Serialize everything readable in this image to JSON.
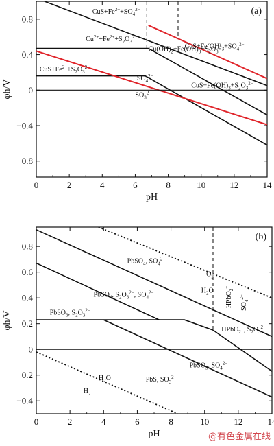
{
  "watermark": "@有色金属在线",
  "colors": {
    "boundary": "#111111",
    "water_line": "#e0252b",
    "dashed": "#222222",
    "watermark": "#d2464d"
  },
  "chart_data": [
    {
      "type": "line",
      "panel_label": "(a)",
      "xlabel": "pH",
      "ylabel": "φh/V",
      "xlim": [
        0,
        14
      ],
      "ylim": [
        -0.98,
        1.0
      ],
      "xticks": [
        0,
        2,
        4,
        6,
        8,
        10,
        12,
        14
      ],
      "yticks": [
        -0.8,
        -0.4,
        0,
        0.4,
        0.8
      ],
      "grid": false,
      "series": [
        {
          "style": "solid",
          "color": "black",
          "x": [
            0.5,
            14
          ],
          "y": [
            1.0,
            0.05
          ]
        },
        {
          "style": "solid",
          "color": "black",
          "x": [
            0,
            6.8,
            14
          ],
          "y": [
            0.47,
            0.47,
            -0.28
          ]
        },
        {
          "style": "solid",
          "color": "black",
          "x": [
            0,
            6.6,
            14
          ],
          "y": [
            0.16,
            0.16,
            -0.62
          ]
        },
        {
          "style": "solid",
          "color": "red",
          "x": [
            6.8,
            14
          ],
          "y": [
            0.73,
            0.13
          ]
        },
        {
          "style": "solid",
          "color": "red",
          "x": [
            0,
            14
          ],
          "y": [
            0.44,
            -0.39
          ]
        },
        {
          "style": "solid",
          "color": "black",
          "x": [
            0,
            14
          ],
          "y": [
            0,
            0
          ]
        },
        {
          "style": "dashed",
          "color": "black",
          "x": [
            6.7,
            6.7
          ],
          "y": [
            1.0,
            0.47
          ]
        },
        {
          "style": "dashed",
          "color": "black",
          "x": [
            8.6,
            8.6
          ],
          "y": [
            1.0,
            0.58
          ]
        }
      ],
      "region_labels": [
        {
          "x": 3.4,
          "y": 0.86,
          "parts": [
            [
              "t",
              "CuS+Fe"
            ],
            [
              "sup",
              "2+"
            ],
            [
              "t",
              "+SO"
            ],
            [
              "sub",
              "4"
            ],
            [
              "sup",
              "2−"
            ]
          ]
        },
        {
          "x": 3.0,
          "y": 0.55,
          "parts": [
            [
              "t",
              "Cu"
            ],
            [
              "sup",
              "2+"
            ],
            [
              "t",
              "+Fe"
            ],
            [
              "sup",
              "2+"
            ],
            [
              "t",
              "+S"
            ],
            [
              "sub",
              "2"
            ],
            [
              "t",
              "O"
            ],
            [
              "sub",
              "3"
            ],
            [
              "sup",
              "2−"
            ]
          ]
        },
        {
          "x": 0.2,
          "y": 0.21,
          "parts": [
            [
              "t",
              "CuS+Fe"
            ],
            [
              "sup",
              "2+"
            ],
            [
              "t",
              "+S"
            ],
            [
              "sub",
              "2"
            ],
            [
              "t",
              "O"
            ],
            [
              "sub",
              "3"
            ],
            [
              "sup",
              "2−"
            ]
          ]
        },
        {
          "x": 9.0,
          "y": 0.47,
          "parts": [
            [
              "t",
              "CuS+Fe(OH)"
            ],
            [
              "sub",
              "3"
            ],
            [
              "t",
              "+SO"
            ],
            [
              "sub",
              "4"
            ],
            [
              "sup",
              "2−"
            ]
          ]
        },
        {
          "x": 6.8,
          "y": 0.44,
          "parts": [
            [
              "t",
              "Cu(OH)"
            ],
            [
              "sub",
              "2"
            ],
            [
              "t",
              "+Fe(OH)"
            ],
            [
              "sub",
              "3"
            ],
            [
              "t",
              "+S"
            ],
            [
              "sub",
              "2"
            ],
            [
              "t",
              "O"
            ],
            [
              "sub",
              "3"
            ],
            [
              "sup",
              "2−"
            ]
          ]
        },
        {
          "x": 6.1,
          "y": 0.11,
          "parts": [
            [
              "t",
              "SO"
            ],
            [
              "sub",
              "4"
            ],
            [
              "sup",
              "2−"
            ]
          ]
        },
        {
          "x": 6.0,
          "y": -0.08,
          "parts": [
            [
              "t",
              "SO"
            ],
            [
              "sub",
              "3"
            ],
            [
              "sup",
              "2−"
            ]
          ]
        },
        {
          "x": 9.4,
          "y": 0.03,
          "parts": [
            [
              "t",
              "CuS+Fe(OH)"
            ],
            [
              "sub",
              "3"
            ],
            [
              "t",
              "+S"
            ],
            [
              "sub",
              "2"
            ],
            [
              "t",
              "O"
            ],
            [
              "sub",
              "3"
            ],
            [
              "sup",
              "2−"
            ]
          ]
        }
      ]
    },
    {
      "type": "line",
      "panel_label": "(b)",
      "xlabel": "pH",
      "ylabel": "φh/V",
      "xlim": [
        0,
        14
      ],
      "ylim": [
        -0.5,
        0.95
      ],
      "xticks": [
        0,
        2,
        4,
        6,
        8,
        10,
        12,
        14
      ],
      "yticks": [
        -0.4,
        -0.2,
        0,
        0.2,
        0.4,
        0.6,
        0.8
      ],
      "grid": false,
      "series": [
        {
          "style": "dotted",
          "color": "black",
          "x": [
            3.7,
            14
          ],
          "y": [
            0.95,
            0.4
          ]
        },
        {
          "style": "solid",
          "color": "black",
          "x": [
            0,
            14
          ],
          "y": [
            0.93,
            0.1
          ]
        },
        {
          "style": "solid",
          "color": "black",
          "x": [
            0,
            7.3
          ],
          "y": [
            0.67,
            0.23
          ]
        },
        {
          "style": "solid",
          "color": "black",
          "x": [
            0,
            8.8,
            10.5,
            14
          ],
          "y": [
            0.23,
            0.23,
            0.15,
            -0.17
          ]
        },
        {
          "style": "solid",
          "color": "black",
          "x": [
            4.0,
            14
          ],
          "y": [
            0.23,
            -0.37
          ]
        },
        {
          "style": "solid",
          "color": "black",
          "x": [
            0,
            14
          ],
          "y": [
            0,
            0
          ]
        },
        {
          "style": "dotted",
          "color": "black",
          "x": [
            0,
            8.4
          ],
          "y": [
            -0.02,
            -0.5
          ]
        },
        {
          "style": "dashed",
          "color": "black",
          "x": [
            10.5,
            10.5
          ],
          "y": [
            0.95,
            0.15
          ]
        }
      ],
      "region_labels": [
        {
          "x": 5.4,
          "y": 0.67,
          "parts": [
            [
              "t",
              "PbSO"
            ],
            [
              "sub",
              "4"
            ],
            [
              "t",
              ", SO"
            ],
            [
              "sub",
              "4"
            ],
            [
              "sup",
              "2−"
            ]
          ]
        },
        {
          "x": 3.4,
          "y": 0.41,
          "parts": [
            [
              "t",
              "PbSO"
            ],
            [
              "sub",
              "4"
            ],
            [
              "t",
              ", S"
            ],
            [
              "sub",
              "2"
            ],
            [
              "t",
              "O"
            ],
            [
              "sub",
              "3"
            ],
            [
              "sup",
              "2−"
            ],
            [
              "t",
              ", SO"
            ],
            [
              "sub",
              "4"
            ],
            [
              "sup",
              "2−"
            ]
          ]
        },
        {
          "x": 0.8,
          "y": 0.27,
          "parts": [
            [
              "t",
              "PbSO"
            ],
            [
              "sub",
              "3"
            ],
            [
              "t",
              ", S"
            ],
            [
              "sub",
              "2"
            ],
            [
              "t",
              "O"
            ],
            [
              "sub",
              "3"
            ],
            [
              "sup",
              "2−"
            ]
          ]
        },
        {
          "x": 10.1,
          "y": 0.57,
          "parts": [
            [
              "t",
              "O"
            ],
            [
              "sub",
              "2"
            ]
          ]
        },
        {
          "x": 9.8,
          "y": 0.44,
          "parts": [
            [
              "t",
              "H"
            ],
            [
              "sub",
              "2"
            ],
            [
              "t",
              "O"
            ]
          ]
        },
        {
          "x": 11.0,
          "y": 0.14,
          "parts": [
            [
              "t",
              "HPbO"
            ],
            [
              "sub",
              "2"
            ],
            [
              "sup",
              "−"
            ],
            [
              "t",
              ", S"
            ],
            [
              "sub",
              "2"
            ],
            [
              "t",
              "O"
            ],
            [
              "sub",
              "3"
            ],
            [
              "sup",
              "2−"
            ]
          ]
        },
        {
          "x": 9.1,
          "y": -0.14,
          "parts": [
            [
              "t",
              "PbSO"
            ],
            [
              "sub",
              "3"
            ],
            [
              "t",
              ", SO"
            ],
            [
              "sub",
              "4"
            ],
            [
              "sup",
              "2−"
            ]
          ]
        },
        {
          "x": 6.5,
          "y": -0.25,
          "parts": [
            [
              "t",
              "PbS, SO"
            ],
            [
              "sub",
              "3"
            ],
            [
              "sup",
              "2−"
            ]
          ]
        },
        {
          "x": 3.7,
          "y": -0.24,
          "parts": [
            [
              "t",
              "H"
            ],
            [
              "sub",
              "2"
            ],
            [
              "t",
              "O"
            ]
          ]
        },
        {
          "x": 2.8,
          "y": -0.34,
          "parts": [
            [
              "t",
              "H"
            ],
            [
              "sub",
              "2"
            ]
          ]
        }
      ],
      "vertical_labels": [
        {
          "x": 11.55,
          "y": 0.32,
          "parts": [
            [
              "t",
              "HPbO"
            ],
            [
              "sub",
              "2"
            ],
            [
              "sup",
              "−"
            ]
          ]
        },
        {
          "x": 12.45,
          "y": 0.3,
          "parts": [
            [
              "t",
              "SO"
            ],
            [
              "sub",
              "4"
            ],
            [
              "sup",
              "2−"
            ]
          ]
        }
      ]
    }
  ]
}
